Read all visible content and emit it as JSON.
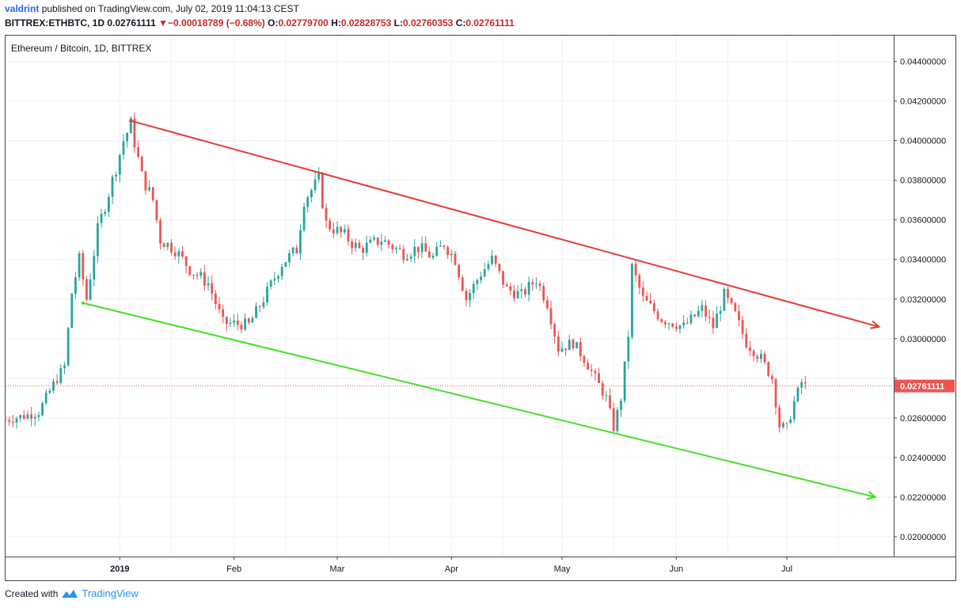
{
  "header": {
    "user": "valdrint",
    "published": "published on TradingView.com, July 02, 2019 11:04:13 CEST",
    "symbol": "BITTREX:ETHBTC, 1D",
    "last": "0.02761111",
    "change_arrow": "▼",
    "change": "−0.00018789 (−0.68%)",
    "o_label": "O:",
    "o_value": "0.02779700",
    "h_label": "H:",
    "h_value": "0.02828753",
    "l_label": "L:",
    "l_value": "0.02760353",
    "c_label": "C:",
    "c_value": "0.02761111"
  },
  "footer": {
    "created_with": "Created with",
    "brand": "TradingView"
  },
  "colors": {
    "up": "#26a69a",
    "down": "#ef5350",
    "resistance": "#e53935",
    "support": "#44e024",
    "grid": "#eef2f6",
    "price_line": "#ef5350"
  },
  "chart_data": {
    "type": "candlestick",
    "title": "Ethereum / Bitcoin, 1D, BITTREX",
    "x_labels": [
      "2019",
      "Feb",
      "Mar",
      "Apr",
      "May",
      "Jun",
      "Jul"
    ],
    "x_label_dates": [
      "2019-01-01",
      "2019-02-01",
      "2019-03-01",
      "2019-04-01",
      "2019-05-01",
      "2019-06-01",
      "2019-07-01"
    ],
    "xlim": [
      "2018-12-01",
      "2019-07-30"
    ],
    "ylim": [
      0.019,
      0.0453
    ],
    "y_ticks": [
      0.02,
      0.022,
      0.024,
      0.026,
      0.028,
      0.03,
      0.032,
      0.034,
      0.036,
      0.038,
      0.04,
      0.042,
      0.044
    ],
    "y_tick_labels": [
      "0.02000000",
      "0.02200000",
      "0.02400000",
      "0.02600000",
      "",
      "0.03000000",
      "0.03200000",
      "0.03400000",
      "0.03600000",
      "0.03800000",
      "0.04000000",
      "0.04200000",
      "0.04400000"
    ],
    "last_price": 0.02761111,
    "last_price_label": "0.02761111",
    "trend_lines": [
      {
        "role": "resistance",
        "from": [
          "2019-01-04",
          0.041
        ],
        "to": [
          "2019-07-26",
          0.0306
        ]
      },
      {
        "role": "support",
        "from": [
          "2018-12-22",
          0.0318
        ],
        "to": [
          "2019-07-25",
          0.022
        ]
      }
    ],
    "anchors": [
      [
        "2018-12-01",
        0.0259
      ],
      [
        "2018-12-06",
        0.0261
      ],
      [
        "2018-12-10",
        0.0263
      ],
      [
        "2018-12-14",
        0.0277
      ],
      [
        "2018-12-17",
        0.0286
      ],
      [
        "2018-12-19",
        0.0323
      ],
      [
        "2018-12-21",
        0.034
      ],
      [
        "2018-12-23",
        0.032
      ],
      [
        "2018-12-26",
        0.0355
      ],
      [
        "2018-12-30",
        0.038
      ],
      [
        "2019-01-02",
        0.04
      ],
      [
        "2019-01-04",
        0.0408
      ],
      [
        "2019-01-07",
        0.0382
      ],
      [
        "2019-01-10",
        0.037
      ],
      [
        "2019-01-12",
        0.035
      ],
      [
        "2019-01-16",
        0.0345
      ],
      [
        "2019-01-20",
        0.0335
      ],
      [
        "2019-01-25",
        0.0328
      ],
      [
        "2019-01-29",
        0.0308
      ],
      [
        "2019-02-05",
        0.0307
      ],
      [
        "2019-02-09",
        0.032
      ],
      [
        "2019-02-14",
        0.0338
      ],
      [
        "2019-02-18",
        0.0345
      ],
      [
        "2019-02-20",
        0.037
      ],
      [
        "2019-02-24",
        0.038
      ],
      [
        "2019-02-26",
        0.0358
      ],
      [
        "2019-03-03",
        0.0352
      ],
      [
        "2019-03-07",
        0.0345
      ],
      [
        "2019-03-13",
        0.035
      ],
      [
        "2019-03-19",
        0.0343
      ],
      [
        "2019-03-23",
        0.0346
      ],
      [
        "2019-03-27",
        0.0341
      ],
      [
        "2019-03-30",
        0.0348
      ],
      [
        "2019-04-02",
        0.034
      ],
      [
        "2019-04-05",
        0.032
      ],
      [
        "2019-04-09",
        0.0333
      ],
      [
        "2019-04-12",
        0.034
      ],
      [
        "2019-04-16",
        0.0325
      ],
      [
        "2019-04-20",
        0.0322
      ],
      [
        "2019-04-24",
        0.033
      ],
      [
        "2019-04-27",
        0.0318
      ],
      [
        "2019-04-30",
        0.0295
      ],
      [
        "2019-05-04",
        0.0298
      ],
      [
        "2019-05-07",
        0.029
      ],
      [
        "2019-05-10",
        0.028
      ],
      [
        "2019-05-13",
        0.027
      ],
      [
        "2019-05-15",
        0.0255
      ],
      [
        "2019-05-17",
        0.027
      ],
      [
        "2019-05-19",
        0.0302
      ],
      [
        "2019-05-20",
        0.0336
      ],
      [
        "2019-05-23",
        0.032
      ],
      [
        "2019-05-28",
        0.031
      ],
      [
        "2019-06-03",
        0.0306
      ],
      [
        "2019-06-08",
        0.0315
      ],
      [
        "2019-06-11",
        0.0306
      ],
      [
        "2019-06-14",
        0.0322
      ],
      [
        "2019-06-17",
        0.0312
      ],
      [
        "2019-06-20",
        0.0298
      ],
      [
        "2019-06-24",
        0.029
      ],
      [
        "2019-06-27",
        0.028
      ],
      [
        "2019-06-29",
        0.0256
      ],
      [
        "2019-07-01",
        0.0255
      ],
      [
        "2019-07-03",
        0.0268
      ],
      [
        "2019-07-05",
        0.0278
      ],
      [
        "2019-07-06",
        0.0276
      ]
    ],
    "grid": true,
    "grid_x_extra": [
      "2019-01-15",
      "2019-02-15",
      "2019-03-15",
      "2019-04-15",
      "2019-05-15",
      "2019-06-15",
      "2019-07-15"
    ]
  }
}
